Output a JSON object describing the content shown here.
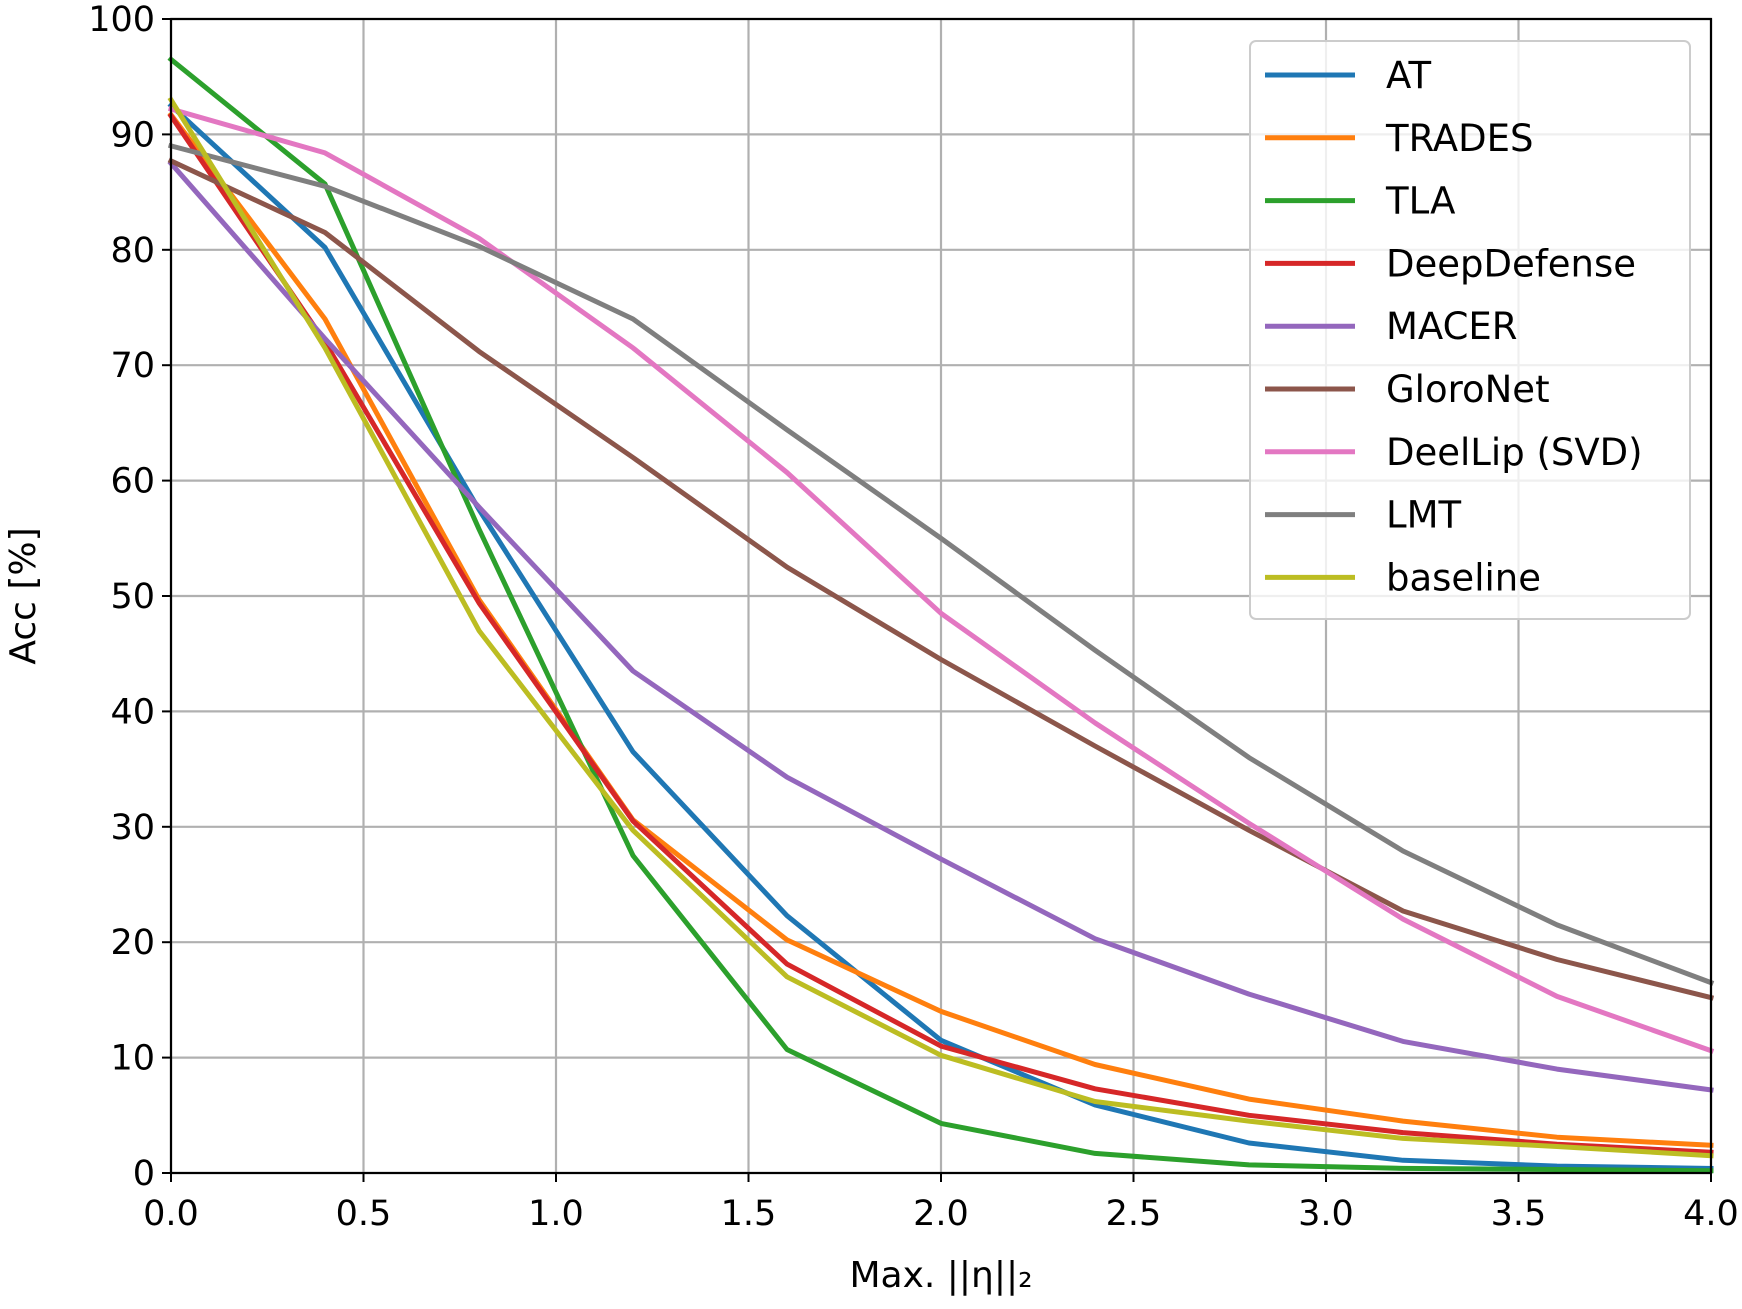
{
  "chart_data": {
    "type": "line",
    "title": "",
    "xlabel": "Max. ||η||₂",
    "ylabel": "Acc [%]",
    "xlim": [
      0.0,
      4.0
    ],
    "ylim": [
      0,
      100
    ],
    "xticks": [
      "0.0",
      "0.5",
      "1.0",
      "1.5",
      "2.0",
      "2.5",
      "3.0",
      "3.5",
      "4.0"
    ],
    "yticks": [
      "0",
      "10",
      "20",
      "30",
      "40",
      "50",
      "60",
      "70",
      "80",
      "90",
      "100"
    ],
    "grid": true,
    "legend_position": "top-right",
    "x": [
      0.0,
      0.4,
      0.8,
      1.2,
      1.6,
      2.0,
      2.4,
      2.8,
      3.2,
      3.6,
      4.0
    ],
    "series": [
      {
        "name": "AT",
        "color": "#1f77b4",
        "values": [
          92.5,
          80.2,
          57.5,
          36.5,
          22.3,
          11.5,
          5.9,
          2.6,
          1.1,
          0.6,
          0.4
        ]
      },
      {
        "name": "TRADES",
        "color": "#ff7f0e",
        "values": [
          91.7,
          74.0,
          49.7,
          30.6,
          20.2,
          14.0,
          9.4,
          6.4,
          4.5,
          3.1,
          2.4
        ]
      },
      {
        "name": "TLA",
        "color": "#2ca02c",
        "values": [
          96.5,
          85.7,
          55.8,
          27.5,
          10.7,
          4.3,
          1.7,
          0.7,
          0.4,
          0.3,
          0.2
        ]
      },
      {
        "name": "DeepDefense",
        "color": "#d62728",
        "values": [
          91.6,
          72.0,
          49.4,
          30.5,
          18.1,
          11.0,
          7.3,
          5.0,
          3.5,
          2.5,
          1.8
        ]
      },
      {
        "name": "MACER",
        "color": "#9467bd",
        "values": [
          87.5,
          72.3,
          57.7,
          43.5,
          34.3,
          27.2,
          20.3,
          15.5,
          11.4,
          9.0,
          7.2
        ]
      },
      {
        "name": "GloroNet",
        "color": "#8c564b",
        "values": [
          87.7,
          81.5,
          71.2,
          62.0,
          52.5,
          44.5,
          37.0,
          29.7,
          22.7,
          18.5,
          15.2
        ]
      },
      {
        "name": "DeelLip (SVD)",
        "color": "#e377c2",
        "values": [
          92.2,
          88.4,
          81.0,
          71.5,
          60.7,
          48.5,
          39.0,
          30.3,
          22.0,
          15.3,
          10.6
        ]
      },
      {
        "name": "LMT",
        "color": "#7f7f7f",
        "values": [
          89.0,
          85.5,
          80.3,
          74.0,
          64.4,
          55.0,
          45.3,
          36.0,
          27.9,
          21.5,
          16.5
        ]
      },
      {
        "name": "baseline",
        "color": "#bcbd22",
        "values": [
          93.0,
          71.5,
          47.0,
          29.7,
          17.0,
          10.2,
          6.2,
          4.5,
          3.0,
          2.3,
          1.5
        ]
      }
    ]
  }
}
